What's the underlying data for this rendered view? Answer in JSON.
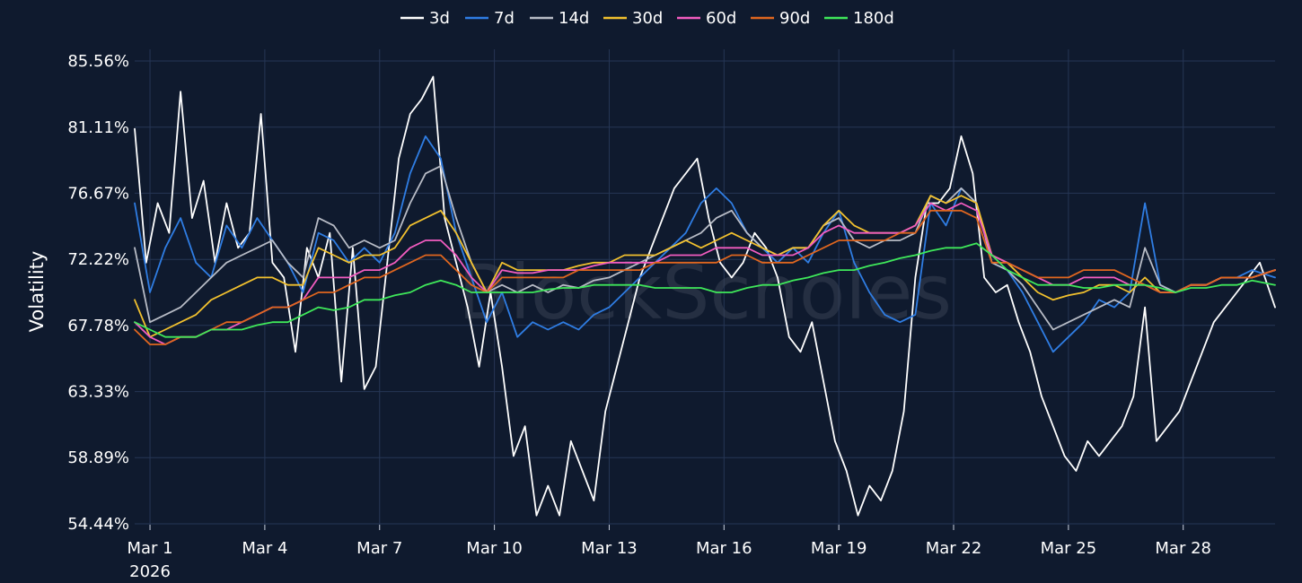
{
  "chart_data": {
    "type": "line",
    "ylabel": "Volatility",
    "watermark": "BlockScholes",
    "y_ticks": [
      "54.44%",
      "58.89%",
      "63.33%",
      "67.78%",
      "72.22%",
      "76.67%",
      "81.11%",
      "85.56%"
    ],
    "y_tick_values": [
      54.44,
      58.89,
      63.33,
      67.78,
      72.22,
      76.67,
      81.11,
      85.56
    ],
    "ylim": [
      54.44,
      85.56
    ],
    "x_ticks": [
      {
        "label": "Mar 1",
        "sublabel": "2026",
        "day": 1
      },
      {
        "label": "Mar 4",
        "sublabel": "",
        "day": 4
      },
      {
        "label": "Mar 7",
        "sublabel": "",
        "day": 7
      },
      {
        "label": "Mar 10",
        "sublabel": "",
        "day": 10
      },
      {
        "label": "Mar 13",
        "sublabel": "",
        "day": 13
      },
      {
        "label": "Mar 16",
        "sublabel": "",
        "day": 16
      },
      {
        "label": "Mar 19",
        "sublabel": "",
        "day": 19
      },
      {
        "label": "Mar 22",
        "sublabel": "",
        "day": 22
      },
      {
        "label": "Mar 25",
        "sublabel": "",
        "day": 25
      },
      {
        "label": "Mar 28",
        "sublabel": "",
        "day": 28
      }
    ],
    "xlim": [
      0.6,
      30.4
    ],
    "grid": true,
    "legend_position": "top-center",
    "series": [
      {
        "name": "3d",
        "color": "#ffffff",
        "x": [
          0.6,
          0.9,
          1.2,
          1.5,
          1.8,
          2.1,
          2.4,
          2.7,
          3.0,
          3.3,
          3.6,
          3.9,
          4.2,
          4.5,
          4.8,
          5.1,
          5.4,
          5.7,
          6.0,
          6.3,
          6.6,
          6.9,
          7.2,
          7.5,
          7.8,
          8.1,
          8.4,
          8.7,
          9.0,
          9.3,
          9.6,
          9.9,
          10.2,
          10.5,
          10.8,
          11.1,
          11.4,
          11.7,
          12.0,
          12.3,
          12.6,
          12.9,
          13.2,
          13.5,
          13.8,
          14.1,
          14.4,
          14.7,
          15.0,
          15.3,
          15.6,
          15.9,
          16.2,
          16.5,
          16.8,
          17.1,
          17.4,
          17.7,
          18.0,
          18.3,
          18.6,
          18.9,
          19.2,
          19.5,
          19.8,
          20.1,
          20.4,
          20.7,
          21.0,
          21.3,
          21.6,
          21.9,
          22.2,
          22.5,
          22.8,
          23.1,
          23.4,
          23.7,
          24.0,
          24.3,
          24.6,
          24.9,
          25.2,
          25.5,
          25.8,
          26.1,
          26.4,
          26.7,
          27.0,
          27.3,
          27.6,
          27.9,
          28.2,
          28.5,
          28.8,
          29.1,
          29.4,
          29.7,
          30.0,
          30.4
        ],
        "y": [
          81.0,
          72.0,
          76.0,
          74.0,
          83.5,
          75.0,
          77.5,
          72.0,
          76.0,
          73.0,
          74.0,
          82.0,
          72.0,
          71.0,
          66.0,
          73.0,
          71.0,
          74.0,
          64.0,
          73.0,
          63.5,
          65.0,
          72.0,
          79.0,
          82.0,
          83.0,
          84.5,
          75.0,
          72.0,
          69.0,
          65.0,
          70.0,
          65.0,
          59.0,
          61.0,
          55.0,
          57.0,
          55.0,
          60.0,
          58.0,
          56.0,
          62.0,
          65.0,
          68.0,
          71.0,
          73.0,
          75.0,
          77.0,
          78.0,
          79.0,
          75.0,
          72.0,
          71.0,
          72.0,
          74.0,
          73.0,
          71.0,
          67.0,
          66.0,
          68.0,
          64.0,
          60.0,
          58.0,
          55.0,
          57.0,
          56.0,
          58.0,
          62.0,
          71.0,
          76.0,
          76.0,
          77.0,
          80.5,
          78.0,
          71.0,
          70.0,
          70.5,
          68.0,
          66.0,
          63.0,
          61.0,
          59.0,
          58.0,
          60.0,
          59.0,
          60.0,
          61.0,
          63.0,
          69.0,
          60.0,
          61.0,
          62.0,
          64.0,
          66.0,
          68.0,
          69.0,
          70.0,
          71.0,
          72.0,
          69.0
        ]
      },
      {
        "name": "7d",
        "color": "#2f7de3",
        "x": [
          0.6,
          1.0,
          1.4,
          1.8,
          2.2,
          2.6,
          3.0,
          3.4,
          3.8,
          4.2,
          4.6,
          5.0,
          5.4,
          5.8,
          6.2,
          6.6,
          7.0,
          7.4,
          7.8,
          8.2,
          8.6,
          9.0,
          9.4,
          9.8,
          10.2,
          10.6,
          11.0,
          11.4,
          11.8,
          12.2,
          12.6,
          13.0,
          13.4,
          13.8,
          14.2,
          14.6,
          15.0,
          15.4,
          15.8,
          16.2,
          16.6,
          17.0,
          17.4,
          17.8,
          18.2,
          18.6,
          19.0,
          19.4,
          19.8,
          20.2,
          20.6,
          21.0,
          21.4,
          21.8,
          22.2,
          22.6,
          23.0,
          23.4,
          23.8,
          24.2,
          24.6,
          25.0,
          25.4,
          25.8,
          26.2,
          26.6,
          27.0,
          27.4,
          27.8,
          28.2,
          28.6,
          29.0,
          29.4,
          29.8,
          30.4
        ],
        "y": [
          76.0,
          70.0,
          73.0,
          75.0,
          72.0,
          71.0,
          74.5,
          73.0,
          75.0,
          73.5,
          72.0,
          70.0,
          74.0,
          73.5,
          72.0,
          73.0,
          72.0,
          74.0,
          78.0,
          80.5,
          79.0,
          74.0,
          71.0,
          68.0,
          70.0,
          67.0,
          68.0,
          67.5,
          68.0,
          67.5,
          68.5,
          69.0,
          70.0,
          71.0,
          72.0,
          73.0,
          74.0,
          76.0,
          77.0,
          76.0,
          74.0,
          73.0,
          72.0,
          73.0,
          72.0,
          74.0,
          75.5,
          72.0,
          70.0,
          68.5,
          68.0,
          68.5,
          76.0,
          74.5,
          77.0,
          76.0,
          72.0,
          71.5,
          70.0,
          68.0,
          66.0,
          67.0,
          68.0,
          69.5,
          69.0,
          70.0,
          76.0,
          70.5,
          70.0,
          70.5,
          70.5,
          71.0,
          71.0,
          71.5,
          71.0
        ]
      },
      {
        "name": "14d",
        "color": "#b8bcc6",
        "x": [
          0.6,
          1.0,
          1.4,
          1.8,
          2.2,
          2.6,
          3.0,
          3.4,
          3.8,
          4.2,
          4.6,
          5.0,
          5.4,
          5.8,
          6.2,
          6.6,
          7.0,
          7.4,
          7.8,
          8.2,
          8.6,
          9.0,
          9.4,
          9.8,
          10.2,
          10.6,
          11.0,
          11.4,
          11.8,
          12.2,
          12.6,
          13.0,
          13.4,
          13.8,
          14.2,
          14.6,
          15.0,
          15.4,
          15.8,
          16.2,
          16.6,
          17.0,
          17.4,
          17.8,
          18.2,
          18.6,
          19.0,
          19.4,
          19.8,
          20.2,
          20.6,
          21.0,
          21.4,
          21.8,
          22.2,
          22.6,
          23.0,
          23.4,
          23.8,
          24.2,
          24.6,
          25.0,
          25.4,
          25.8,
          26.2,
          26.6,
          27.0,
          27.4,
          27.8,
          28.2,
          28.6,
          29.0,
          29.4,
          29.8,
          30.4
        ],
        "y": [
          73.0,
          68.0,
          68.5,
          69.0,
          70.0,
          71.0,
          72.0,
          72.5,
          73.0,
          73.5,
          72.0,
          71.0,
          75.0,
          74.5,
          73.0,
          73.5,
          73.0,
          73.5,
          76.0,
          78.0,
          78.5,
          75.0,
          72.0,
          70.0,
          70.5,
          70.0,
          70.5,
          70.0,
          70.5,
          70.3,
          70.8,
          71.0,
          71.5,
          72.0,
          72.5,
          73.0,
          73.5,
          74.0,
          75.0,
          75.5,
          74.0,
          73.0,
          72.5,
          73.0,
          73.0,
          74.5,
          75.0,
          73.5,
          73.0,
          73.5,
          73.5,
          74.0,
          76.5,
          76.0,
          77.0,
          76.0,
          72.0,
          71.5,
          70.5,
          69.0,
          67.5,
          68.0,
          68.5,
          69.0,
          69.5,
          69.0,
          73.0,
          70.5,
          70.0,
          70.5,
          70.5,
          71.0,
          71.0,
          71.0,
          71.5
        ]
      },
      {
        "name": "30d",
        "color": "#f2c12e",
        "x": [
          0.6,
          1.0,
          1.4,
          1.8,
          2.2,
          2.6,
          3.0,
          3.4,
          3.8,
          4.2,
          4.6,
          5.0,
          5.4,
          5.8,
          6.2,
          6.6,
          7.0,
          7.4,
          7.8,
          8.2,
          8.6,
          9.0,
          9.4,
          9.8,
          10.2,
          10.6,
          11.0,
          11.4,
          11.8,
          12.2,
          12.6,
          13.0,
          13.4,
          13.8,
          14.2,
          14.6,
          15.0,
          15.4,
          15.8,
          16.2,
          16.6,
          17.0,
          17.4,
          17.8,
          18.2,
          18.6,
          19.0,
          19.4,
          19.8,
          20.2,
          20.6,
          21.0,
          21.4,
          21.8,
          22.2,
          22.6,
          23.0,
          23.4,
          23.8,
          24.2,
          24.6,
          25.0,
          25.4,
          25.8,
          26.2,
          26.6,
          27.0,
          27.4,
          27.8,
          28.2,
          28.6,
          29.0,
          29.4,
          29.8,
          30.4
        ],
        "y": [
          69.5,
          67.0,
          67.5,
          68.0,
          68.5,
          69.5,
          70.0,
          70.5,
          71.0,
          71.0,
          70.5,
          70.5,
          73.0,
          72.5,
          72.0,
          72.5,
          72.5,
          73.0,
          74.5,
          75.0,
          75.5,
          74.0,
          72.0,
          70.0,
          72.0,
          71.5,
          71.5,
          71.5,
          71.5,
          71.8,
          72.0,
          72.0,
          72.5,
          72.5,
          72.5,
          73.0,
          73.5,
          73.0,
          73.5,
          74.0,
          73.5,
          73.0,
          72.5,
          73.0,
          73.0,
          74.5,
          75.5,
          74.5,
          74.0,
          74.0,
          74.0,
          74.5,
          76.5,
          76.0,
          76.5,
          76.0,
          72.5,
          72.0,
          71.0,
          70.0,
          69.5,
          69.8,
          70.0,
          70.5,
          70.5,
          70.0,
          71.0,
          70.0,
          70.0,
          70.5,
          70.5,
          71.0,
          71.0,
          71.0,
          71.5
        ]
      },
      {
        "name": "60d",
        "color": "#f25cc0",
        "x": [
          0.6,
          1.0,
          1.4,
          1.8,
          2.2,
          2.6,
          3.0,
          3.4,
          3.8,
          4.2,
          4.6,
          5.0,
          5.4,
          5.8,
          6.2,
          6.6,
          7.0,
          7.4,
          7.8,
          8.2,
          8.6,
          9.0,
          9.4,
          9.8,
          10.2,
          10.6,
          11.0,
          11.4,
          11.8,
          12.2,
          12.6,
          13.0,
          13.4,
          13.8,
          14.2,
          14.6,
          15.0,
          15.4,
          15.8,
          16.2,
          16.6,
          17.0,
          17.4,
          17.8,
          18.2,
          18.6,
          19.0,
          19.4,
          19.8,
          20.2,
          20.6,
          21.0,
          21.4,
          21.8,
          22.2,
          22.6,
          23.0,
          23.4,
          23.8,
          24.2,
          24.6,
          25.0,
          25.4,
          25.8,
          26.2,
          26.6,
          27.0,
          27.4,
          27.8,
          28.2,
          28.6,
          29.0,
          29.4,
          29.8,
          30.4
        ],
        "y": [
          68.0,
          67.0,
          66.5,
          67.0,
          67.0,
          67.5,
          67.5,
          68.0,
          68.5,
          69.0,
          69.0,
          69.5,
          71.0,
          71.0,
          71.0,
          71.5,
          71.5,
          72.0,
          73.0,
          73.5,
          73.5,
          72.5,
          71.0,
          70.0,
          71.5,
          71.3,
          71.3,
          71.5,
          71.5,
          71.5,
          71.8,
          72.0,
          72.0,
          72.0,
          72.0,
          72.5,
          72.5,
          72.5,
          73.0,
          73.0,
          73.0,
          72.5,
          72.5,
          72.5,
          73.0,
          74.0,
          74.5,
          74.0,
          74.0,
          74.0,
          74.0,
          74.5,
          76.0,
          75.5,
          76.0,
          75.5,
          72.5,
          72.0,
          71.5,
          71.0,
          70.5,
          70.5,
          71.0,
          71.0,
          71.0,
          70.5,
          70.5,
          70.0,
          70.0,
          70.5,
          70.5,
          71.0,
          71.0,
          71.0,
          71.5
        ]
      },
      {
        "name": "90d",
        "color": "#e0661f",
        "x": [
          0.6,
          1.0,
          1.4,
          1.8,
          2.2,
          2.6,
          3.0,
          3.4,
          3.8,
          4.2,
          4.6,
          5.0,
          5.4,
          5.8,
          6.2,
          6.6,
          7.0,
          7.4,
          7.8,
          8.2,
          8.6,
          9.0,
          9.4,
          9.8,
          10.2,
          10.6,
          11.0,
          11.4,
          11.8,
          12.2,
          12.6,
          13.0,
          13.4,
          13.8,
          14.2,
          14.6,
          15.0,
          15.4,
          15.8,
          16.2,
          16.6,
          17.0,
          17.4,
          17.8,
          18.2,
          18.6,
          19.0,
          19.4,
          19.8,
          20.2,
          20.6,
          21.0,
          21.4,
          21.8,
          22.2,
          22.6,
          23.0,
          23.4,
          23.8,
          24.2,
          24.6,
          25.0,
          25.4,
          25.8,
          26.2,
          26.6,
          27.0,
          27.4,
          27.8,
          28.2,
          28.6,
          29.0,
          29.4,
          29.8,
          30.4
        ],
        "y": [
          67.5,
          66.5,
          66.5,
          67.0,
          67.0,
          67.5,
          68.0,
          68.0,
          68.5,
          69.0,
          69.0,
          69.5,
          70.0,
          70.0,
          70.5,
          71.0,
          71.0,
          71.5,
          72.0,
          72.5,
          72.5,
          71.5,
          70.5,
          70.0,
          71.0,
          71.0,
          71.0,
          71.0,
          71.0,
          71.5,
          71.5,
          71.5,
          71.5,
          71.5,
          72.0,
          72.0,
          72.0,
          72.0,
          72.0,
          72.5,
          72.5,
          72.0,
          72.0,
          72.0,
          72.5,
          73.0,
          73.5,
          73.5,
          73.5,
          73.5,
          74.0,
          74.0,
          75.5,
          75.5,
          75.5,
          75.0,
          72.0,
          72.0,
          71.5,
          71.0,
          71.0,
          71.0,
          71.5,
          71.5,
          71.5,
          71.0,
          70.5,
          70.0,
          70.0,
          70.5,
          70.5,
          71.0,
          71.0,
          71.0,
          71.5
        ]
      },
      {
        "name": "180d",
        "color": "#3fe85a",
        "x": [
          0.6,
          1.0,
          1.4,
          1.8,
          2.2,
          2.6,
          3.0,
          3.4,
          3.8,
          4.2,
          4.6,
          5.0,
          5.4,
          5.8,
          6.2,
          6.6,
          7.0,
          7.4,
          7.8,
          8.2,
          8.6,
          9.0,
          9.4,
          9.8,
          10.2,
          10.6,
          11.0,
          11.4,
          11.8,
          12.2,
          12.6,
          13.0,
          13.4,
          13.8,
          14.2,
          14.6,
          15.0,
          15.4,
          15.8,
          16.2,
          16.6,
          17.0,
          17.4,
          17.8,
          18.2,
          18.6,
          19.0,
          19.4,
          19.8,
          20.2,
          20.6,
          21.0,
          21.4,
          21.8,
          22.2,
          22.6,
          23.0,
          23.4,
          23.8,
          24.2,
          24.6,
          25.0,
          25.4,
          25.8,
          26.2,
          26.6,
          27.0,
          27.4,
          27.8,
          28.2,
          28.6,
          29.0,
          29.4,
          29.8,
          30.4
        ],
        "y": [
          68.0,
          67.5,
          67.0,
          67.0,
          67.0,
          67.5,
          67.5,
          67.5,
          67.8,
          68.0,
          68.0,
          68.5,
          69.0,
          68.8,
          69.0,
          69.5,
          69.5,
          69.8,
          70.0,
          70.5,
          70.8,
          70.5,
          70.0,
          70.0,
          70.0,
          70.0,
          70.0,
          70.2,
          70.3,
          70.3,
          70.5,
          70.5,
          70.5,
          70.5,
          70.3,
          70.3,
          70.3,
          70.3,
          70.0,
          70.0,
          70.3,
          70.5,
          70.5,
          70.8,
          71.0,
          71.3,
          71.5,
          71.5,
          71.8,
          72.0,
          72.3,
          72.5,
          72.8,
          73.0,
          73.0,
          73.3,
          72.5,
          71.5,
          71.0,
          70.5,
          70.5,
          70.5,
          70.3,
          70.3,
          70.5,
          70.5,
          70.5,
          70.3,
          70.0,
          70.3,
          70.3,
          70.5,
          70.5,
          70.8,
          70.5
        ]
      }
    ]
  }
}
